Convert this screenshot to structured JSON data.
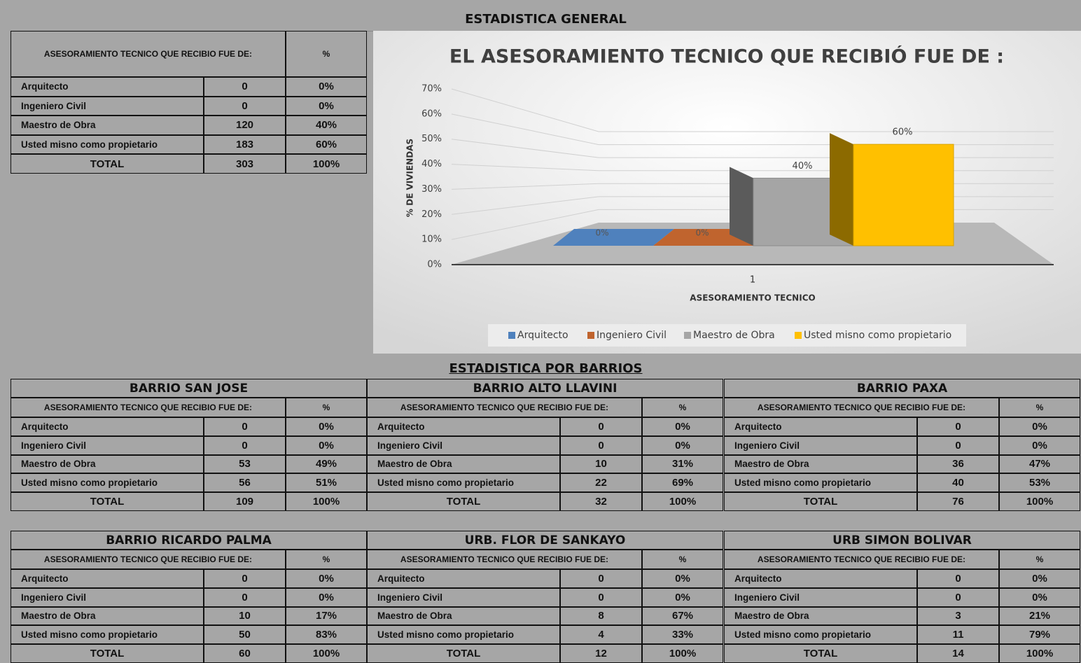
{
  "header": {
    "title": "ESTADISTICA GENERAL"
  },
  "summary": {
    "header": [
      "ASESORAMIENTO TECNICO QUE RECIBIO FUE DE:",
      "%"
    ],
    "rows": [
      [
        "Arquitecto",
        "0",
        "0%"
      ],
      [
        "Ingeniero Civil",
        "0",
        "0%"
      ],
      [
        "Maestro de Obra",
        "120",
        "40%"
      ],
      [
        "Usted misno como propietario",
        "183",
        "60%"
      ],
      [
        "TOTAL",
        "303",
        "100%"
      ]
    ]
  },
  "chart_data": {
    "type": "bar",
    "title": "EL ASESORAMIENTO TECNICO QUE RECIBIÓ FUE DE :",
    "x_label": "ASESORAMIENTO TECNICO",
    "y_label": "% DE VIVIENDAS",
    "categories": [
      "1"
    ],
    "series": [
      {
        "name": "Arquitecto",
        "color": "#4f81bd",
        "values": [
          0
        ],
        "value_labels": [
          "0%"
        ]
      },
      {
        "name": "Ingeniero Civil",
        "color": "#c0642e",
        "values": [
          0
        ],
        "value_labels": [
          "0%"
        ]
      },
      {
        "name": "Maestro de Obra",
        "color": "#a5a5a5",
        "values": [
          40
        ],
        "value_labels": [
          "40%"
        ]
      },
      {
        "name": "Usted misno como propietario",
        "color": "#ffc000",
        "values": [
          60
        ],
        "value_labels": [
          "60%"
        ]
      }
    ],
    "ylim": [
      0,
      70
    ],
    "yticks": [
      {
        "value": 0,
        "label": "0%"
      },
      {
        "value": 10,
        "label": "10%"
      },
      {
        "value": 20,
        "label": "20%"
      },
      {
        "value": 30,
        "label": "30%"
      },
      {
        "value": 40,
        "label": "40%"
      },
      {
        "value": 50,
        "label": "50%"
      },
      {
        "value": 60,
        "label": "60%"
      },
      {
        "value": 70,
        "label": "70%"
      }
    ],
    "grid": true,
    "legend": "bottom"
  },
  "section": {
    "title": "ESTADISTICA POR BARRIOS"
  },
  "barrios": [
    {
      "title": "BARRIO SAN JOSE",
      "header": [
        "ASESORAMIENTO TECNICO QUE RECIBIO FUE DE:",
        "%"
      ],
      "rows": [
        [
          "Arquitecto",
          "0",
          "0%"
        ],
        [
          "Ingeniero Civil",
          "0",
          "0%"
        ],
        [
          "Maestro de Obra",
          "53",
          "49%"
        ],
        [
          "Usted misno como propietario",
          "56",
          "51%"
        ],
        [
          "TOTAL",
          "109",
          "100%"
        ]
      ]
    },
    {
      "title": "BARRIO ALTO LLAVINI",
      "header": [
        "ASESORAMIENTO TECNICO QUE RECIBIO FUE DE:",
        "%"
      ],
      "rows": [
        [
          "Arquitecto",
          "0",
          "0%"
        ],
        [
          "Ingeniero Civil",
          "0",
          "0%"
        ],
        [
          "Maestro de Obra",
          "10",
          "31%"
        ],
        [
          "Usted misno como propietario",
          "22",
          "69%"
        ],
        [
          "TOTAL",
          "32",
          "100%"
        ]
      ]
    },
    {
      "title": "BARRIO PAXA",
      "header": [
        "ASESORAMIENTO TECNICO QUE RECIBIO FUE DE:",
        "%"
      ],
      "rows": [
        [
          "Arquitecto",
          "0",
          "0%"
        ],
        [
          "Ingeniero Civil",
          "0",
          "0%"
        ],
        [
          "Maestro de Obra",
          "36",
          "47%"
        ],
        [
          "Usted misno como propietario",
          "40",
          "53%"
        ],
        [
          "TOTAL",
          "76",
          "100%"
        ]
      ]
    },
    {
      "title": "BARRIO RICARDO PALMA",
      "header": [
        "ASESORAMIENTO TECNICO QUE RECIBIO FUE DE:",
        "%"
      ],
      "rows": [
        [
          "Arquitecto",
          "0",
          "0%"
        ],
        [
          "Ingeniero Civil",
          "0",
          "0%"
        ],
        [
          "Maestro de Obra",
          "10",
          "17%"
        ],
        [
          "Usted misno como propietario",
          "50",
          "83%"
        ],
        [
          "TOTAL",
          "60",
          "100%"
        ]
      ]
    },
    {
      "title": "URB. FLOR DE SANKAYO",
      "header": [
        "ASESORAMIENTO TECNICO QUE RECIBIO FUE DE:",
        "%"
      ],
      "rows": [
        [
          "Arquitecto",
          "0",
          "0%"
        ],
        [
          "Ingeniero Civil",
          "0",
          "0%"
        ],
        [
          "Maestro de Obra",
          "8",
          "67%"
        ],
        [
          "Usted misno como propietario",
          "4",
          "33%"
        ],
        [
          "TOTAL",
          "12",
          "100%"
        ]
      ]
    },
    {
      "title": "URB SIMON BOLIVAR",
      "header": [
        "ASESORAMIENTO TECNICO QUE RECIBIO FUE DE:",
        "%"
      ],
      "rows": [
        [
          "Arquitecto",
          "0",
          "0%"
        ],
        [
          "Ingeniero Civil",
          "0",
          "0%"
        ],
        [
          "Maestro de Obra",
          "3",
          "21%"
        ],
        [
          "Usted misno como propietario",
          "11",
          "79%"
        ],
        [
          "TOTAL",
          "14",
          "100%"
        ]
      ]
    }
  ]
}
